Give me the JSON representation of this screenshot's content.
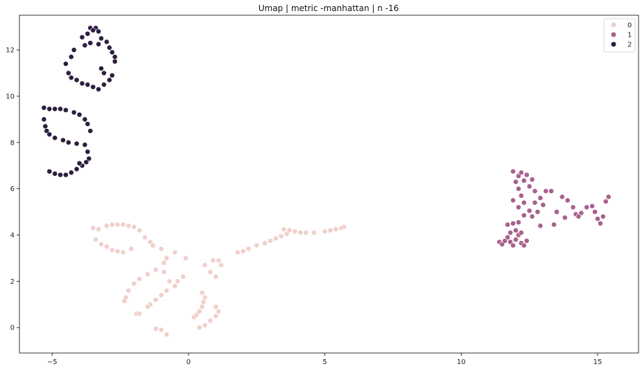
{
  "chart_data": {
    "type": "scatter",
    "title": "Umap | metric -manhattan  | n -16",
    "xlabel": "",
    "ylabel": "",
    "xlim": [
      -6.2,
      16.5
    ],
    "ylim": [
      -1.1,
      13.5
    ],
    "xticks": [
      -5,
      0,
      5,
      10,
      15
    ],
    "yticks": [
      0,
      2,
      4,
      6,
      8,
      10,
      12
    ],
    "grid": false,
    "legend_position": "top-right",
    "series": [
      {
        "name": "0",
        "color": "#f0d0cb",
        "points": [
          [
            -3.5,
            4.3
          ],
          [
            -3.3,
            4.25
          ],
          [
            -3.0,
            4.4
          ],
          [
            -2.8,
            4.45
          ],
          [
            -2.6,
            4.45
          ],
          [
            -2.4,
            4.45
          ],
          [
            -2.2,
            4.4
          ],
          [
            -2.0,
            4.35
          ],
          [
            -1.8,
            4.2
          ],
          [
            -1.6,
            3.9
          ],
          [
            -1.4,
            3.7
          ],
          [
            -3.4,
            3.8
          ],
          [
            -3.2,
            3.6
          ],
          [
            -3.0,
            3.5
          ],
          [
            -2.8,
            3.35
          ],
          [
            -2.6,
            3.3
          ],
          [
            -2.4,
            3.25
          ],
          [
            -2.1,
            3.4
          ],
          [
            -1.3,
            3.55
          ],
          [
            -1.0,
            3.4
          ],
          [
            -0.5,
            3.25
          ],
          [
            -0.1,
            3.0
          ],
          [
            -0.8,
            3.0
          ],
          [
            -0.9,
            2.8
          ],
          [
            -1.2,
            2.5
          ],
          [
            -1.5,
            2.3
          ],
          [
            -1.8,
            2.1
          ],
          [
            -2.0,
            1.9
          ],
          [
            -2.2,
            1.6
          ],
          [
            -2.3,
            1.3
          ],
          [
            -2.35,
            1.15
          ],
          [
            -1.9,
            0.6
          ],
          [
            -1.8,
            0.6
          ],
          [
            -0.9,
            2.4
          ],
          [
            -0.7,
            2.0
          ],
          [
            -0.5,
            1.8
          ],
          [
            -0.4,
            2.0
          ],
          [
            -0.2,
            2.2
          ],
          [
            -0.8,
            1.6
          ],
          [
            -1.0,
            1.4
          ],
          [
            -1.2,
            1.2
          ],
          [
            -1.4,
            1.0
          ],
          [
            -1.5,
            0.9
          ],
          [
            -1.2,
            -0.05
          ],
          [
            -1.0,
            -0.1
          ],
          [
            -0.8,
            -0.3
          ],
          [
            0.2,
            0.45
          ],
          [
            0.3,
            0.55
          ],
          [
            0.4,
            0.7
          ],
          [
            0.5,
            0.9
          ],
          [
            0.55,
            1.1
          ],
          [
            0.6,
            1.3
          ],
          [
            0.5,
            1.5
          ],
          [
            0.4,
            0.0
          ],
          [
            0.6,
            0.1
          ],
          [
            0.8,
            0.3
          ],
          [
            1.0,
            0.5
          ],
          [
            1.1,
            0.7
          ],
          [
            1.0,
            0.9
          ],
          [
            0.6,
            2.7
          ],
          [
            0.8,
            2.4
          ],
          [
            1.0,
            2.2
          ],
          [
            0.9,
            2.9
          ],
          [
            1.1,
            2.9
          ],
          [
            1.2,
            2.7
          ],
          [
            1.8,
            3.25
          ],
          [
            2.0,
            3.3
          ],
          [
            2.2,
            3.4
          ],
          [
            2.5,
            3.55
          ],
          [
            2.8,
            3.65
          ],
          [
            3.0,
            3.75
          ],
          [
            3.2,
            3.85
          ],
          [
            3.4,
            3.95
          ],
          [
            3.6,
            4.05
          ],
          [
            3.5,
            4.25
          ],
          [
            3.7,
            4.2
          ],
          [
            3.9,
            4.15
          ],
          [
            4.1,
            4.1
          ],
          [
            4.3,
            4.1
          ],
          [
            4.6,
            4.1
          ],
          [
            5.0,
            4.15
          ],
          [
            5.2,
            4.2
          ],
          [
            5.4,
            4.25
          ],
          [
            5.6,
            4.3
          ],
          [
            5.7,
            4.35
          ]
        ]
      },
      {
        "name": "1",
        "color": "#a8618c",
        "points": [
          [
            11.4,
            3.7
          ],
          [
            11.5,
            3.6
          ],
          [
            11.6,
            3.75
          ],
          [
            11.7,
            3.9
          ],
          [
            11.8,
            3.7
          ],
          [
            11.9,
            3.55
          ],
          [
            12.0,
            3.8
          ],
          [
            12.1,
            4.0
          ],
          [
            12.2,
            3.65
          ],
          [
            12.3,
            3.55
          ],
          [
            12.4,
            3.75
          ],
          [
            12.2,
            4.1
          ],
          [
            12.0,
            4.2
          ],
          [
            11.8,
            4.1
          ],
          [
            11.7,
            4.45
          ],
          [
            11.9,
            4.5
          ],
          [
            12.1,
            4.55
          ],
          [
            12.3,
            4.85
          ],
          [
            12.5,
            5.05
          ],
          [
            12.6,
            4.8
          ],
          [
            12.8,
            5.0
          ],
          [
            13.0,
            5.3
          ],
          [
            12.9,
            5.6
          ],
          [
            12.7,
            5.9
          ],
          [
            12.5,
            6.1
          ],
          [
            12.3,
            6.35
          ],
          [
            12.1,
            6.55
          ],
          [
            11.9,
            6.75
          ],
          [
            12.2,
            6.7
          ],
          [
            12.4,
            6.6
          ],
          [
            12.6,
            6.4
          ],
          [
            12.0,
            6.3
          ],
          [
            12.1,
            6.0
          ],
          [
            12.2,
            5.7
          ],
          [
            11.9,
            5.5
          ],
          [
            12.1,
            5.2
          ],
          [
            12.3,
            5.4
          ],
          [
            12.7,
            5.4
          ],
          [
            13.1,
            5.9
          ],
          [
            13.3,
            5.9
          ],
          [
            13.5,
            5.0
          ],
          [
            13.7,
            5.65
          ],
          [
            13.9,
            5.5
          ],
          [
            14.1,
            5.2
          ],
          [
            14.2,
            4.9
          ],
          [
            14.4,
            4.95
          ],
          [
            14.6,
            5.2
          ],
          [
            14.8,
            5.25
          ],
          [
            14.9,
            5.0
          ],
          [
            15.0,
            4.7
          ],
          [
            15.1,
            4.5
          ],
          [
            15.2,
            4.8
          ],
          [
            15.3,
            5.45
          ],
          [
            15.4,
            5.65
          ],
          [
            14.3,
            4.8
          ],
          [
            13.8,
            4.75
          ],
          [
            13.4,
            4.45
          ],
          [
            12.9,
            4.4
          ]
        ]
      },
      {
        "name": "2",
        "color": "#2d1e3e",
        "points": [
          [
            -3.6,
            12.95
          ],
          [
            -3.4,
            12.95
          ],
          [
            -3.5,
            12.85
          ],
          [
            -3.3,
            12.8
          ],
          [
            -3.7,
            12.7
          ],
          [
            -3.9,
            12.55
          ],
          [
            -3.2,
            12.5
          ],
          [
            -3.0,
            12.35
          ],
          [
            -3.3,
            12.25
          ],
          [
            -3.6,
            12.3
          ],
          [
            -3.8,
            12.2
          ],
          [
            -4.2,
            12.0
          ],
          [
            -2.9,
            12.1
          ],
          [
            -2.8,
            11.9
          ],
          [
            -2.7,
            11.7
          ],
          [
            -2.7,
            11.5
          ],
          [
            -4.3,
            11.7
          ],
          [
            -4.5,
            11.4
          ],
          [
            -4.4,
            11.0
          ],
          [
            -4.3,
            10.8
          ],
          [
            -4.1,
            10.7
          ],
          [
            -3.9,
            10.55
          ],
          [
            -3.7,
            10.5
          ],
          [
            -3.5,
            10.4
          ],
          [
            -3.3,
            10.3
          ],
          [
            -3.1,
            10.5
          ],
          [
            -2.9,
            10.7
          ],
          [
            -2.8,
            10.9
          ],
          [
            -3.1,
            11.0
          ],
          [
            -3.2,
            11.2
          ],
          [
            -5.3,
            9.5
          ],
          [
            -5.1,
            9.45
          ],
          [
            -4.9,
            9.45
          ],
          [
            -4.7,
            9.45
          ],
          [
            -4.5,
            9.4
          ],
          [
            -4.2,
            9.3
          ],
          [
            -4.0,
            9.2
          ],
          [
            -3.8,
            9.0
          ],
          [
            -3.7,
            8.8
          ],
          [
            -3.6,
            8.5
          ],
          [
            -5.3,
            9.0
          ],
          [
            -5.25,
            8.7
          ],
          [
            -5.2,
            8.5
          ],
          [
            -5.1,
            8.35
          ],
          [
            -4.9,
            8.2
          ],
          [
            -4.6,
            8.1
          ],
          [
            -4.4,
            8.0
          ],
          [
            -4.1,
            7.95
          ],
          [
            -3.8,
            7.9
          ],
          [
            -3.7,
            7.6
          ],
          [
            -3.65,
            7.3
          ],
          [
            -3.75,
            7.15
          ],
          [
            -3.9,
            7.0
          ],
          [
            -4.1,
            6.85
          ],
          [
            -4.3,
            6.7
          ],
          [
            -4.5,
            6.6
          ],
          [
            -4.7,
            6.6
          ],
          [
            -4.9,
            6.65
          ],
          [
            -5.1,
            6.75
          ],
          [
            -4.0,
            7.1
          ]
        ]
      }
    ]
  }
}
